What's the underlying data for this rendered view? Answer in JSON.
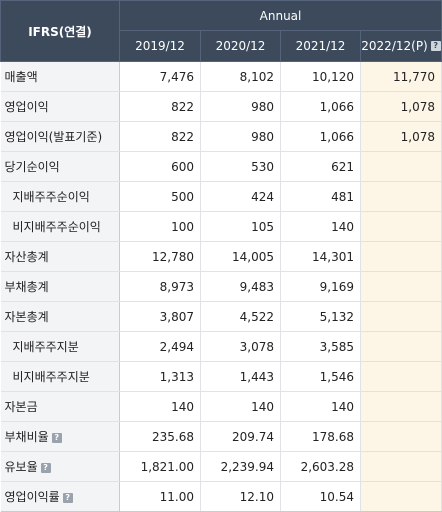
{
  "header": {
    "row_header": "IFRS(연결)",
    "group": "Annual",
    "periods": [
      "2019/12",
      "2020/12",
      "2021/12",
      "2022/12(P)"
    ]
  },
  "rows": [
    {
      "label": "매출액",
      "values": [
        "7,476",
        "8,102",
        "10,120",
        "11,770"
      ]
    },
    {
      "label": "영업이익",
      "values": [
        "822",
        "980",
        "1,066",
        "1,078"
      ]
    },
    {
      "label": "영업이익(발표기준)",
      "values": [
        "822",
        "980",
        "1,066",
        "1,078"
      ]
    },
    {
      "label": "당기순이익",
      "values": [
        "600",
        "530",
        "621",
        ""
      ]
    },
    {
      "label": "지배주주순이익",
      "values": [
        "500",
        "424",
        "481",
        ""
      ]
    },
    {
      "label": "비지배주주순이익",
      "values": [
        "100",
        "105",
        "140",
        ""
      ]
    },
    {
      "label": "자산총계",
      "values": [
        "12,780",
        "14,005",
        "14,301",
        ""
      ]
    },
    {
      "label": "부채총계",
      "values": [
        "8,973",
        "9,483",
        "9,169",
        ""
      ]
    },
    {
      "label": "자본총계",
      "values": [
        "3,807",
        "4,522",
        "5,132",
        ""
      ]
    },
    {
      "label": "지배주주지분",
      "values": [
        "2,494",
        "3,078",
        "3,585",
        ""
      ]
    },
    {
      "label": "비지배주주지분",
      "values": [
        "1,313",
        "1,443",
        "1,546",
        ""
      ]
    },
    {
      "label": "자본금",
      "values": [
        "140",
        "140",
        "140",
        ""
      ]
    },
    {
      "label": "부채비율",
      "values": [
        "235.68",
        "209.74",
        "178.68",
        ""
      ]
    },
    {
      "label": "유보율",
      "values": [
        "1,821.00",
        "2,239.94",
        "2,603.28",
        ""
      ]
    },
    {
      "label": "영업이익률",
      "values": [
        "11.00",
        "12.10",
        "10.54",
        ""
      ]
    }
  ],
  "colors": {
    "header_bg": "#3c4a5c",
    "label_bg": "#f3f4f5",
    "estimate_bg": "#fdf5e6"
  }
}
